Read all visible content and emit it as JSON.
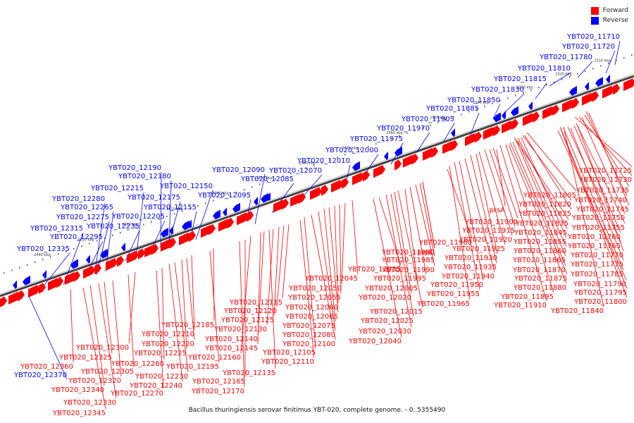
{
  "caption": "Bacillus thuringiensis serovar finitimus YBT-020, complete genome. - 0..5355490",
  "legend": [
    {
      "label": "Forward",
      "color": "#ff0000"
    },
    {
      "label": "Reverse",
      "color": "#0000ff"
    }
  ],
  "colors": {
    "forward": "#ff0000",
    "reverse": "#0000ff",
    "axis": "#555555"
  },
  "scale_ticks": [
    "2310 kbp",
    "2320 kbp",
    "2330 kbp",
    "2340 kbp",
    "2350 kbp",
    "2360 kbp",
    "2370 kbp",
    "2380 kbp",
    "2390 kbp",
    "2400 kbp",
    "2410 kbp",
    "2420 kbp",
    "2430 kbp",
    "2440 kbp"
  ],
  "reverse_labels": [
    "YBT020_11710",
    "YBT020_11720",
    "YBT020_11780",
    "YBT020_11810",
    "YBT020_11815",
    "YBT020_11830",
    "YBT020_11850",
    "YBT020_11885",
    "YBT020_11905",
    "YBT020_11970",
    "YBT020_11975",
    "YBT020_12000",
    "YBT020_12010",
    "YBT020_12070",
    "YBT020_12085",
    "YBT020_12090",
    "YBT020_12095",
    "YBT020_12150",
    "YBT020_12155",
    "YBT020_12175",
    "YBT020_12180",
    "YBT020_12190",
    "YBT020_12205",
    "YBT020_12215",
    "YBT020_12235",
    "YBT020_12265",
    "YBT020_12275",
    "YBT020_12280",
    "YBT020_12295",
    "YBT020_12315",
    "YBT020_12335",
    "YBT020_12370"
  ],
  "forward_labels": [
    "YBT020_11725",
    "YBT020_11730",
    "YBT020_11735",
    "YBT020_11740",
    "YBT020_11745",
    "YBT020_11750",
    "YBT020_11755",
    "YBT020_11760",
    "YBT020_11765",
    "YBT020_11770",
    "YBT020_11775",
    "YBT020_11785",
    "YBT020_11790",
    "YBT020_11795",
    "YBT020_11800",
    "YBT020_11805",
    "YBT020_11820",
    "YBT020_11825",
    "YBT020_11835",
    "YBT020_11840",
    "YBT020_11845",
    "YBT020_11855",
    "YBT020_11860",
    "YBT020_11865",
    "YBT020_11870",
    "YBT020_11875",
    "YBT020_11880",
    "YBT020_11895",
    "YBT020_11900",
    "YBT020_11910",
    "YBT020_11915",
    "YBT020_11920",
    "YBT020_11925",
    "YBT020_11930",
    "YBT020_11935",
    "YBT020_11940",
    "YBT020_11950",
    "YBT020_11955",
    "YBT020_11960",
    "YBT020_11965",
    "YBT020_11980",
    "YBT020_11985",
    "YBT020_11990",
    "YBT020_11995",
    "YBT020_12005",
    "YBT020_12015",
    "YBT020_12020",
    "YBT020_12025",
    "YBT020_12030",
    "YBT020_12035",
    "YBT020_12040",
    "YBT020_12045",
    "YBT020_12050",
    "YBT020_12055",
    "YBT020_12060",
    "YBT020_12065",
    "YBT020_12075",
    "YBT020_12080",
    "YBT020_12100",
    "YBT020_12105",
    "YBT020_12110",
    "YBT020_12115",
    "YBT020_12120",
    "YBT020_12125",
    "YBT020_12130",
    "YBT020_12135",
    "YBT020_12140",
    "YBT020_12145",
    "YBT020_12160",
    "YBT020_12165",
    "YBT020_12170",
    "YBT020_12185",
    "YBT020_12195",
    "YBT020_12210",
    "YBT020_12220",
    "YBT020_12225",
    "YBT020_12230",
    "YBT020_12240",
    "YBT020_12260",
    "YBT020_12270",
    "YBT020_12300",
    "YBT020_12305",
    "YBT020_12320",
    "YBT020_12325",
    "YBT020_12330",
    "YBT020_12340",
    "YBT020_12345",
    "YBT020_12360",
    "prpD",
    "prsA"
  ]
}
